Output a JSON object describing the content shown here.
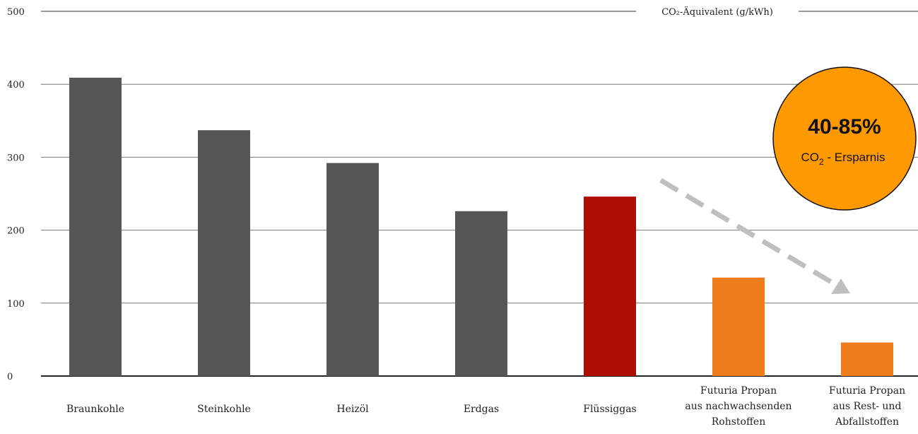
{
  "chart_data": {
    "type": "bar",
    "unit_label": "CO₂-Äquivalent (g/kWh)",
    "ylim": [
      0,
      500
    ],
    "yticks": [
      0,
      100,
      200,
      300,
      400,
      500
    ],
    "grid": true,
    "categories": [
      [
        "Braunkohle"
      ],
      [
        "Steinkohle"
      ],
      [
        "Heizöl"
      ],
      [
        "Erdgas"
      ],
      [
        "Flüssiggas"
      ],
      [
        "Futuria Propan",
        "aus nachwachsenden",
        "Rohstoffen"
      ],
      [
        "Futuria Propan",
        "aus Rest- und",
        "Abfallstoffen"
      ]
    ],
    "values": [
      409,
      337,
      292,
      226,
      246,
      135,
      46
    ],
    "colors": [
      "#555555",
      "#555555",
      "#555555",
      "#555555",
      "#ac0d05",
      "#ef7d1c",
      "#ef7d1c"
    ],
    "badge": {
      "headline": "40-85%",
      "sub_prefix": "CO",
      "sub_subscript": "2",
      "sub_suffix": " - Ersparnis",
      "color": "#ff9900"
    },
    "arrow_color": "#bfbfbf"
  }
}
